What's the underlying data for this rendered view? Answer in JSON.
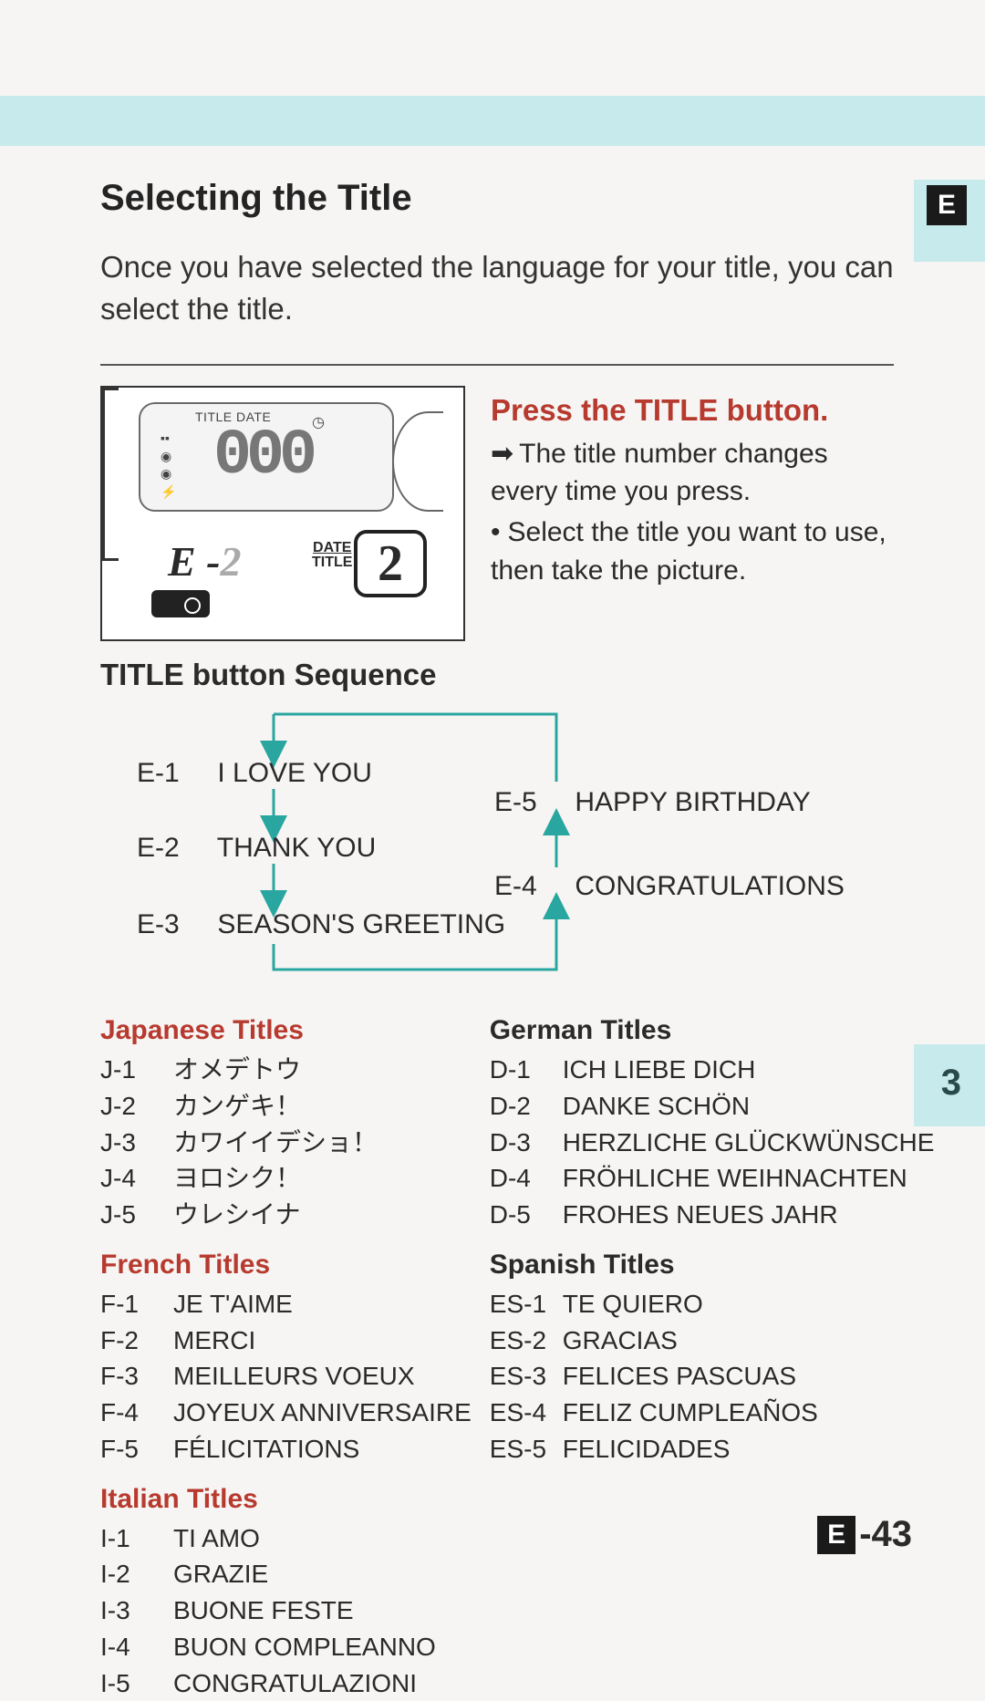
{
  "badges": {
    "side_e": "E",
    "side_3": "3"
  },
  "heading": "Selecting the Title",
  "intro": "Once you have selected the language for your title, you can select the title.",
  "camera": {
    "lcd_label": "TITLE",
    "lcd_date": "DATE",
    "lcd_digits": "000",
    "lower_code": "E -",
    "lower_code_dim": "2",
    "date_word": "DATE",
    "title_word": "TITLE",
    "big_digit": "2"
  },
  "step": {
    "title": "Press the TITLE button.",
    "line1": "The title number changes every time you press.",
    "line2": "Select the title you want to use, then take the picture."
  },
  "seq_heading": "TITLE button Sequence",
  "seq": {
    "e1": {
      "code": "E-1",
      "text": "I LOVE YOU"
    },
    "e2": {
      "code": "E-2",
      "text": "THANK YOU"
    },
    "e3": {
      "code": "E-3",
      "text": "SEASON'S GREETING"
    },
    "e4": {
      "code": "E-4",
      "text": "CONGRATULATIONS"
    },
    "e5": {
      "code": "E-5",
      "text": "HAPPY BIRTHDAY"
    }
  },
  "groups": {
    "japanese": {
      "head": "Japanese Titles",
      "items": [
        {
          "code": "J-1",
          "text": "オメデトウ"
        },
        {
          "code": "J-2",
          "text": "カンゲキ！"
        },
        {
          "code": "J-3",
          "text": "カワイイデショ！"
        },
        {
          "code": "J-4",
          "text": "ヨロシク！"
        },
        {
          "code": "J-5",
          "text": "ウレシイナ"
        }
      ]
    },
    "german": {
      "head": "German Titles",
      "items": [
        {
          "code": "D-1",
          "text": "ICH LIEBE DICH"
        },
        {
          "code": "D-2",
          "text": "DANKE SCHÖN"
        },
        {
          "code": "D-3",
          "text": "HERZLICHE GLÜCKWÜNSCHE"
        },
        {
          "code": "D-4",
          "text": "FRÖHLICHE WEIHNACHTEN"
        },
        {
          "code": "D-5",
          "text": "FROHES NEUES JAHR"
        }
      ]
    },
    "french": {
      "head": "French Titles",
      "items": [
        {
          "code": "F-1",
          "text": "JE T'AIME"
        },
        {
          "code": "F-2",
          "text": "MERCI"
        },
        {
          "code": "F-3",
          "text": "MEILLEURS VOEUX"
        },
        {
          "code": "F-4",
          "text": "JOYEUX ANNIVERSAIRE"
        },
        {
          "code": "F-5",
          "text": "FÉLICITATIONS"
        }
      ]
    },
    "spanish": {
      "head": "Spanish Titles",
      "items": [
        {
          "code": "ES-1",
          "text": "TE QUIERO"
        },
        {
          "code": "ES-2",
          "text": "GRACIAS"
        },
        {
          "code": "ES-3",
          "text": "FELICES PASCUAS"
        },
        {
          "code": "ES-4",
          "text": "FELIZ CUMPLEAÑOS"
        },
        {
          "code": "ES-5",
          "text": "FELICIDADES"
        }
      ]
    },
    "italian": {
      "head": "Italian Titles",
      "items": [
        {
          "code": "I-1",
          "text": "TI AMO"
        },
        {
          "code": "I-2",
          "text": "GRAZIE"
        },
        {
          "code": "I-3",
          "text": "BUONE FESTE"
        },
        {
          "code": "I-4",
          "text": "BUON COMPLEANNO"
        },
        {
          "code": "I-5",
          "text": "CONGRATULAZIONI"
        }
      ]
    }
  },
  "footer": {
    "prefix": "E",
    "num": "-43"
  },
  "colors": {
    "accent_bg": "#c7eaec",
    "accent_red": "#b73a2f",
    "arrow_teal": "#2aa6a0"
  }
}
